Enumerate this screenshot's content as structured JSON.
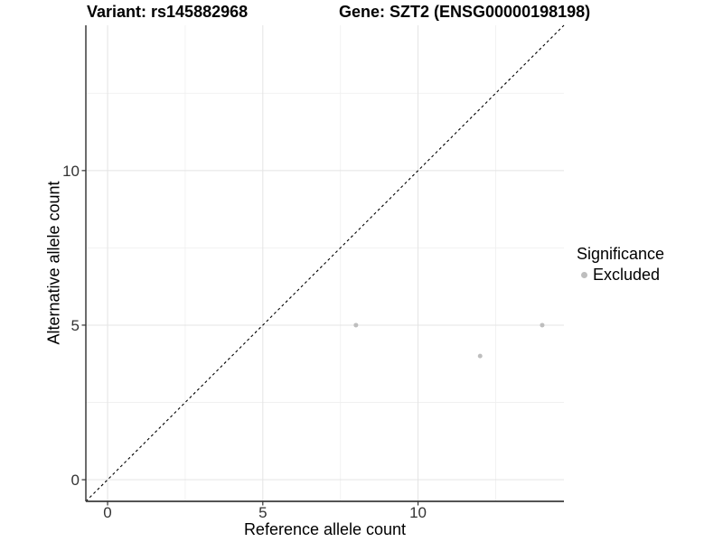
{
  "titles": {
    "variant": "Variant: rs145882968",
    "gene": "Gene: SZT2 (ENSG00000198198)"
  },
  "chart_data": {
    "type": "scatter",
    "title": "Variant: rs145882968    Gene: SZT2 (ENSG00000198198)",
    "xlabel": "Reference allele count",
    "ylabel": "Alternative allele count",
    "xlim": [
      -0.7,
      14.7
    ],
    "ylim": [
      -0.7,
      14.7
    ],
    "x_major_ticks": [
      0,
      5,
      10
    ],
    "y_major_ticks": [
      0,
      5,
      10
    ],
    "x_minor_ticks": [
      2.5,
      7.5,
      12.5
    ],
    "y_minor_ticks": [
      2.5,
      7.5,
      12.5
    ],
    "grid": {
      "major_color": "#e4e4e4",
      "minor_color": "#f0f0f0"
    },
    "axis_color": "#3c3c3c",
    "tick_label_color": "#333333",
    "identity_line": {
      "style": "dashed",
      "color": "#000000",
      "from": [
        -0.7,
        -0.7
      ],
      "to": [
        14.7,
        14.7
      ]
    },
    "series": [
      {
        "name": "Excluded",
        "color": "#bebebe",
        "points": [
          {
            "x": 8,
            "y": 5
          },
          {
            "x": 12,
            "y": 4
          },
          {
            "x": 14,
            "y": 5
          }
        ]
      }
    ],
    "point_radius": 2.5,
    "legend": {
      "title": "Significance",
      "position": "right",
      "items": [
        {
          "label": "Excluded",
          "color": "#bebebe"
        }
      ]
    }
  }
}
